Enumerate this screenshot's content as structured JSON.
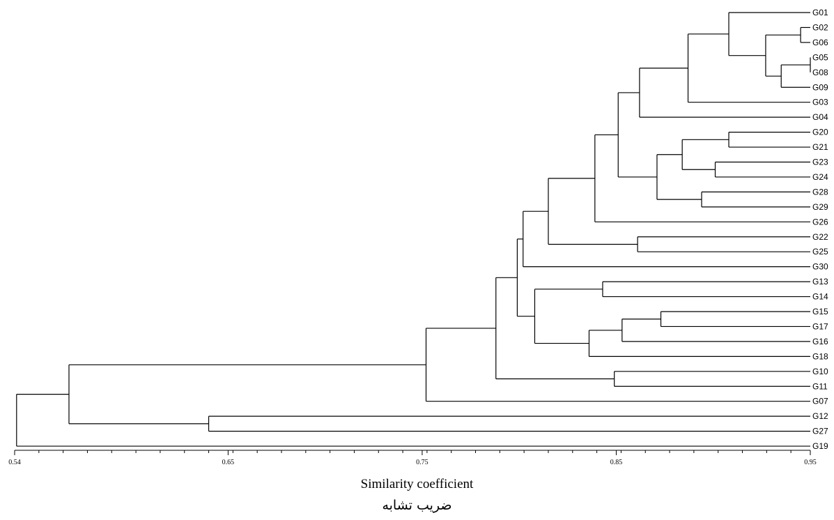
{
  "diagram": {
    "type": "dendrogram",
    "leaves": [
      "G01",
      "G02",
      "G06",
      "G05",
      "G08",
      "G09",
      "G03",
      "G04",
      "G20",
      "G21",
      "G23",
      "G24",
      "G28",
      "G29",
      "G26",
      "G22",
      "G25",
      "G30",
      "G13",
      "G14",
      "G15",
      "G17",
      "G16",
      "G18",
      "G10",
      "G11",
      "G07",
      "G12",
      "G27",
      "G19"
    ],
    "merges": [
      {
        "a": "G05",
        "b": "G08",
        "sim": 0.95
      },
      {
        "a": "G02",
        "b": "G06",
        "sim": 0.945
      },
      {
        "a": "N1",
        "b": "G09",
        "sim": 0.935
      },
      {
        "a": "N2",
        "b": "N3",
        "sim": 0.927
      },
      {
        "a": "G01",
        "b": "N4",
        "sim": 0.908
      },
      {
        "a": "N5",
        "b": "G03",
        "sim": 0.887
      },
      {
        "a": "N6",
        "b": "G04",
        "sim": 0.862
      },
      {
        "a": "G20",
        "b": "G21",
        "sim": 0.908
      },
      {
        "a": "G23",
        "b": "G24",
        "sim": 0.901
      },
      {
        "a": "N8",
        "b": "N9",
        "sim": 0.884
      },
      {
        "a": "G28",
        "b": "G29",
        "sim": 0.894
      },
      {
        "a": "N10",
        "b": "N11",
        "sim": 0.871
      },
      {
        "a": "N7",
        "b": "N12",
        "sim": 0.851
      },
      {
        "a": "N13",
        "b": "G26",
        "sim": 0.839
      },
      {
        "a": "G22",
        "b": "G25",
        "sim": 0.861
      },
      {
        "a": "N14",
        "b": "N15",
        "sim": 0.815
      },
      {
        "a": "N16",
        "b": "G30",
        "sim": 0.802
      },
      {
        "a": "G13",
        "b": "G14",
        "sim": 0.843
      },
      {
        "a": "G15",
        "b": "G17",
        "sim": 0.873
      },
      {
        "a": "N19",
        "b": "G16",
        "sim": 0.853
      },
      {
        "a": "N20",
        "b": "G18",
        "sim": 0.836
      },
      {
        "a": "N18",
        "b": "N21",
        "sim": 0.808
      },
      {
        "a": "N17",
        "b": "N22",
        "sim": 0.799
      },
      {
        "a": "G10",
        "b": "G11",
        "sim": 0.849
      },
      {
        "a": "N23",
        "b": "N24",
        "sim": 0.788
      },
      {
        "a": "N25",
        "b": "G07",
        "sim": 0.752
      },
      {
        "a": "G12",
        "b": "G27",
        "sim": 0.64
      },
      {
        "a": "N26",
        "b": "N27",
        "sim": 0.568
      },
      {
        "a": "N28",
        "b": "G19",
        "sim": 0.541
      }
    ],
    "axis": {
      "min": 0.54,
      "max": 0.95,
      "major_ticks": [
        "0.54",
        "0.65",
        "0.75",
        "0.85",
        "0.95"
      ],
      "minor_step": 0.0125
    },
    "xlabel": "Similarity coefficient",
    "xlabel_fa": "ضریب تشابه"
  }
}
